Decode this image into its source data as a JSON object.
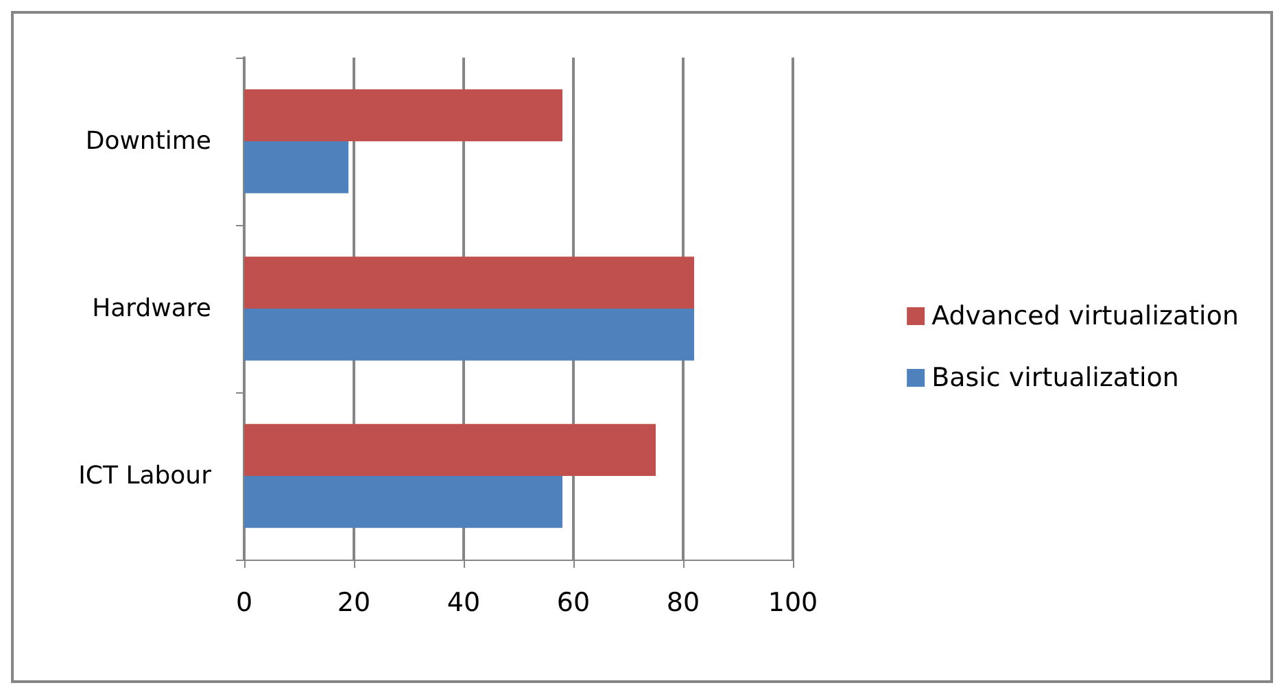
{
  "chart_data": {
    "type": "bar",
    "orientation": "horizontal",
    "categories": [
      "Downtime",
      "Hardware",
      "ICT Labour"
    ],
    "series": [
      {
        "name": "Advanced virtualization",
        "color": "#c0504d",
        "values": [
          58,
          82,
          75
        ]
      },
      {
        "name": "Basic virtualization",
        "color": "#4f81bd",
        "values": [
          19,
          82,
          58
        ]
      }
    ],
    "xlim": [
      0,
      100
    ],
    "xticks": [
      0,
      20,
      40,
      60,
      80,
      100
    ],
    "grid": "x",
    "legend": "right"
  }
}
